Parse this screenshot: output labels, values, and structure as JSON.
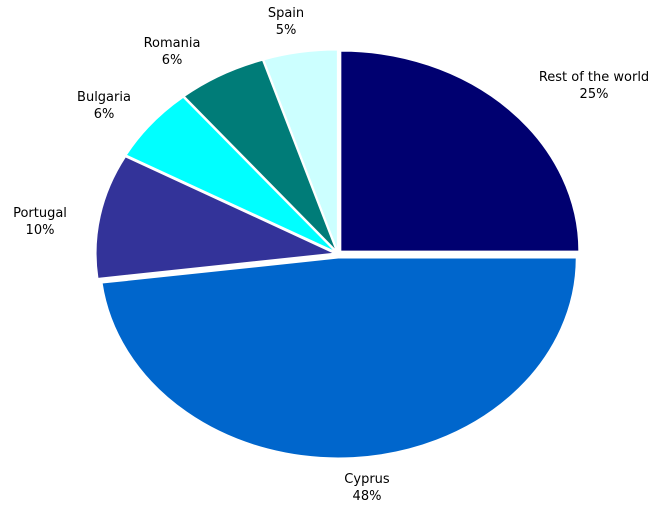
{
  "chart_data": {
    "type": "pie",
    "title": "",
    "slices": [
      {
        "label": "Rest of the world",
        "value": 25,
        "value_label": "25%",
        "color": "#000070"
      },
      {
        "label": "Cyprus",
        "value": 48,
        "value_label": "48%",
        "color": "#0066CC"
      },
      {
        "label": "Portugal",
        "value": 10,
        "value_label": "10%",
        "color": "#333399"
      },
      {
        "label": "Bulgaria",
        "value": 6,
        "value_label": "6%",
        "color": "#00FFFF"
      },
      {
        "label": "Romania",
        "value": 6,
        "value_label": "6%",
        "color": "#007C78"
      },
      {
        "label": "Spain",
        "value": 5,
        "value_label": "5%",
        "color": "#CCFFFF"
      }
    ],
    "start_angle": "12 o'clock",
    "direction": "clockwise",
    "exploded": true,
    "legend": "none",
    "data_labels": "outside"
  }
}
